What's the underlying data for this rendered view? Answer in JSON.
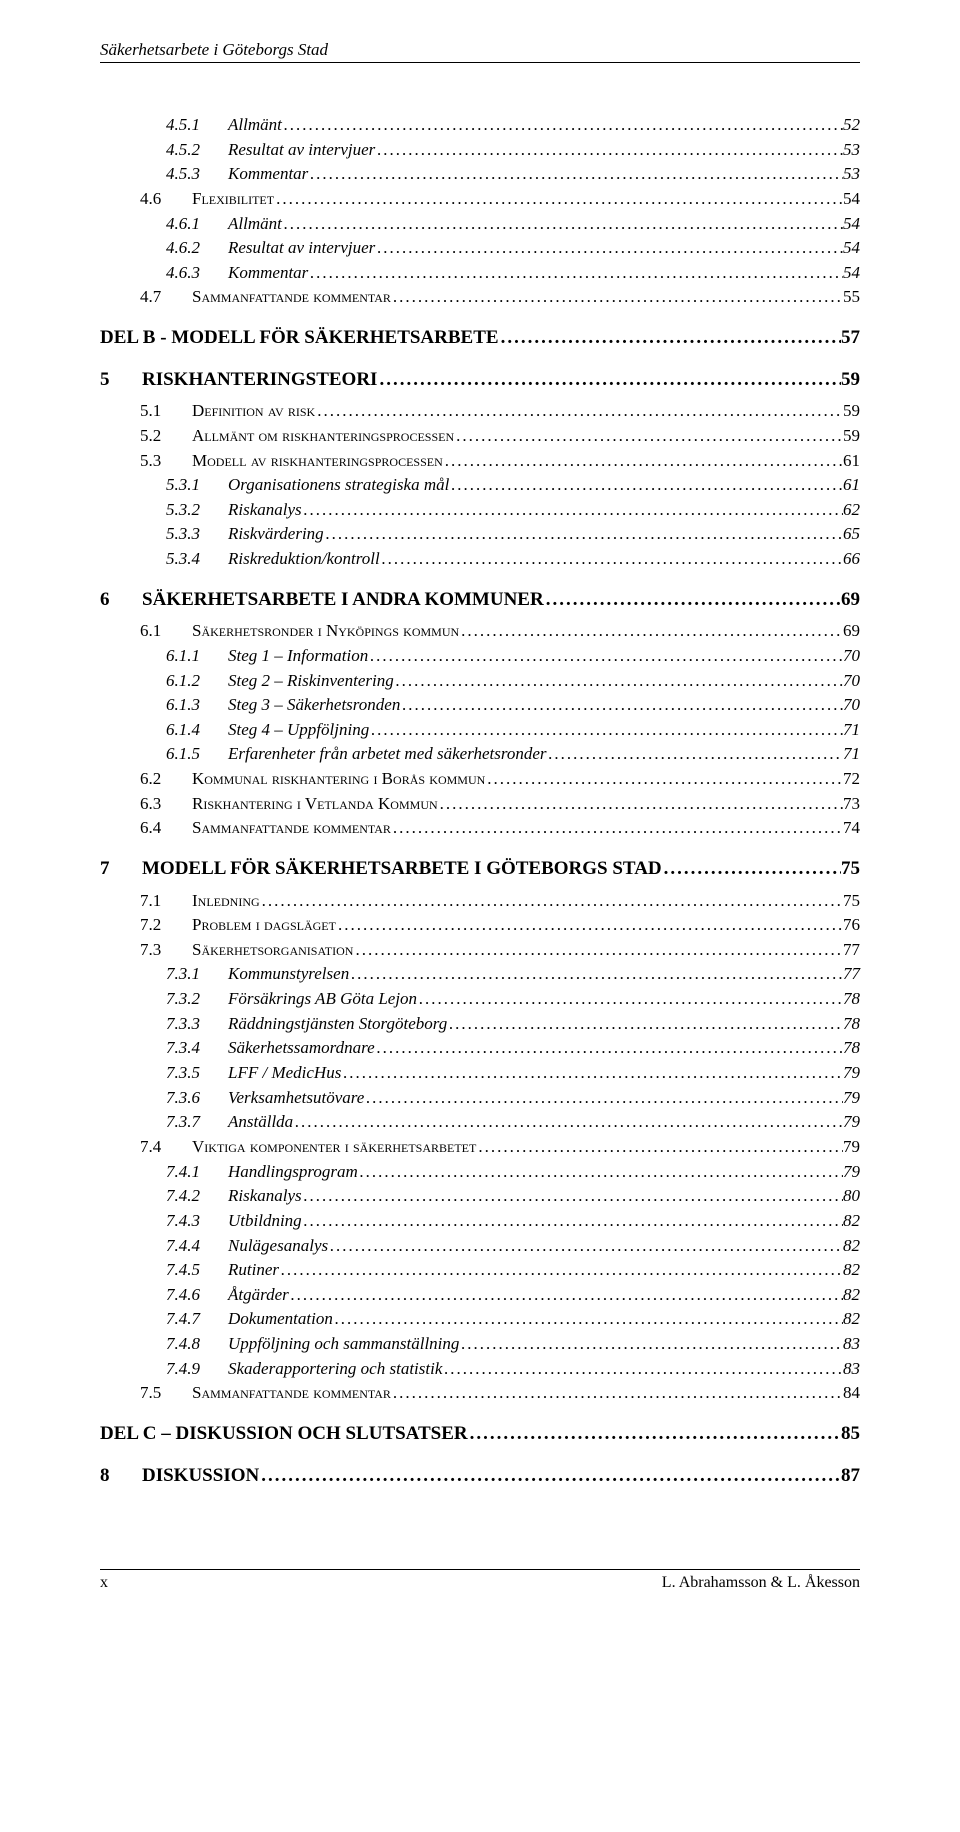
{
  "header": {
    "title": "Säkerhetsarbete i Göteborgs Stad"
  },
  "toc": [
    {
      "level": 3,
      "num": "4.5.1",
      "label": "Allmänt",
      "page": "52"
    },
    {
      "level": 3,
      "num": "4.5.2",
      "label": "Resultat av intervjuer",
      "page": "53"
    },
    {
      "level": 3,
      "num": "4.5.3",
      "label": "Kommentar",
      "page": "53"
    },
    {
      "level": 2,
      "num": "4.6",
      "label": "Flexibilitet",
      "page": "54"
    },
    {
      "level": 3,
      "num": "4.6.1",
      "label": "Allmänt",
      "page": "54"
    },
    {
      "level": 3,
      "num": "4.6.2",
      "label": "Resultat av intervjuer",
      "page": "54"
    },
    {
      "level": 3,
      "num": "4.6.3",
      "label": "Kommentar",
      "page": "54"
    },
    {
      "level": 2,
      "num": "4.7",
      "label": "Sammanfattande kommentar",
      "page": "55"
    },
    {
      "level": 1,
      "num": "",
      "label": "DEL B - MODELL FÖR SÄKERHETSARBETE",
      "page": "57",
      "part": true
    },
    {
      "level": 1,
      "num": "5",
      "label": "RISKHANTERINGSTEORI",
      "page": "59"
    },
    {
      "level": 2,
      "num": "5.1",
      "label": "Definition av risk",
      "page": "59"
    },
    {
      "level": 2,
      "num": "5.2",
      "label": "Allmänt om riskhanteringsprocessen",
      "page": "59"
    },
    {
      "level": 2,
      "num": "5.3",
      "label": "Modell av riskhanteringsprocessen",
      "page": "61"
    },
    {
      "level": 3,
      "num": "5.3.1",
      "label": "Organisationens strategiska mål",
      "page": "61"
    },
    {
      "level": 3,
      "num": "5.3.2",
      "label": "Riskanalys",
      "page": "62"
    },
    {
      "level": 3,
      "num": "5.3.3",
      "label": "Riskvärdering",
      "page": "65"
    },
    {
      "level": 3,
      "num": "5.3.4",
      "label": "Riskreduktion/kontroll",
      "page": "66"
    },
    {
      "level": 1,
      "num": "6",
      "label": "SÄKERHETSARBETE I ANDRA KOMMUNER",
      "page": "69"
    },
    {
      "level": 2,
      "num": "6.1",
      "label": "Säkerhetsronder i Nyköpings kommun",
      "page": "69"
    },
    {
      "level": 3,
      "num": "6.1.1",
      "label": "Steg 1 – Information",
      "page": "70"
    },
    {
      "level": 3,
      "num": "6.1.2",
      "label": "Steg 2 – Riskinventering",
      "page": "70"
    },
    {
      "level": 3,
      "num": "6.1.3",
      "label": "Steg 3 – Säkerhetsronden",
      "page": "70"
    },
    {
      "level": 3,
      "num": "6.1.4",
      "label": "Steg 4 – Uppföljning",
      "page": "71"
    },
    {
      "level": 3,
      "num": "6.1.5",
      "label": "Erfarenheter från arbetet med säkerhetsronder",
      "page": "71"
    },
    {
      "level": 2,
      "num": "6.2",
      "label": "Kommunal riskhantering i Borås kommun",
      "page": "72"
    },
    {
      "level": 2,
      "num": "6.3",
      "label": "Riskhantering i Vetlanda Kommun",
      "page": "73"
    },
    {
      "level": 2,
      "num": "6.4",
      "label": "Sammanfattande kommentar",
      "page": "74"
    },
    {
      "level": 1,
      "num": "7",
      "label": "MODELL FÖR SÄKERHETSARBETE I GÖTEBORGS STAD",
      "page": "75"
    },
    {
      "level": 2,
      "num": "7.1",
      "label": "Inledning",
      "page": "75"
    },
    {
      "level": 2,
      "num": "7.2",
      "label": "Problem i dagsläget",
      "page": "76"
    },
    {
      "level": 2,
      "num": "7.3",
      "label": "Säkerhetsorganisation",
      "page": "77"
    },
    {
      "level": 3,
      "num": "7.3.1",
      "label": "Kommunstyrelsen",
      "page": "77"
    },
    {
      "level": 3,
      "num": "7.3.2",
      "label": "Försäkrings AB Göta Lejon",
      "page": "78"
    },
    {
      "level": 3,
      "num": "7.3.3",
      "label": "Räddningstjänsten Storgöteborg",
      "page": "78"
    },
    {
      "level": 3,
      "num": "7.3.4",
      "label": "Säkerhetssamordnare",
      "page": "78"
    },
    {
      "level": 3,
      "num": "7.3.5",
      "label": "LFF / MedicHus",
      "page": "79"
    },
    {
      "level": 3,
      "num": "7.3.6",
      "label": "Verksamhetsutövare",
      "page": "79"
    },
    {
      "level": 3,
      "num": "7.3.7",
      "label": "Anställda",
      "page": "79"
    },
    {
      "level": 2,
      "num": "7.4",
      "label": "Viktiga komponenter i säkerhetsarbetet",
      "page": "79"
    },
    {
      "level": 3,
      "num": "7.4.1",
      "label": "Handlingsprogram",
      "page": "79"
    },
    {
      "level": 3,
      "num": "7.4.2",
      "label": "Riskanalys",
      "page": "80"
    },
    {
      "level": 3,
      "num": "7.4.3",
      "label": "Utbildning",
      "page": "82"
    },
    {
      "level": 3,
      "num": "7.4.4",
      "label": "Nulägesanalys",
      "page": "82"
    },
    {
      "level": 3,
      "num": "7.4.5",
      "label": "Rutiner",
      "page": "82"
    },
    {
      "level": 3,
      "num": "7.4.6",
      "label": "Åtgärder",
      "page": "82"
    },
    {
      "level": 3,
      "num": "7.4.7",
      "label": "Dokumentation",
      "page": "82"
    },
    {
      "level": 3,
      "num": "7.4.8",
      "label": "Uppföljning och sammanställning",
      "page": "83"
    },
    {
      "level": 3,
      "num": "7.4.9",
      "label": "Skaderapportering och statistik",
      "page": "83"
    },
    {
      "level": 2,
      "num": "7.5",
      "label": "Sammanfattande kommentar",
      "page": "84"
    },
    {
      "level": 1,
      "num": "",
      "label": "DEL C – DISKUSSION OCH SLUTSATSER",
      "page": "85",
      "part": true
    },
    {
      "level": 1,
      "num": "8",
      "label": "DISKUSSION",
      "page": "87"
    }
  ],
  "footer": {
    "page_num": "x",
    "authors": "L. Abrahamsson & L. Åkesson"
  }
}
